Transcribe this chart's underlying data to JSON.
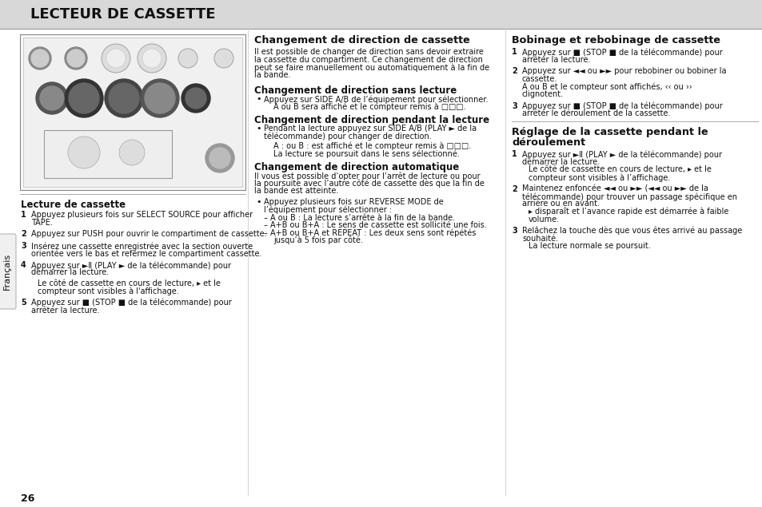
{
  "title": "LECTEUR DE CASSETTE",
  "page_number": "26",
  "bg_color": "#ffffff",
  "header_bg": "#d8d8d8",
  "col1_title": "Lecture de cassette",
  "col2_title": "Changement de direction de cassette",
  "col3_title1": "Bobinage et rebobinage de cassette",
  "col3_title2": "Réglage de la cassette pendant le déroulement",
  "sidebar_text": "Français",
  "figsize": [
    9.54,
    6.35
  ],
  "dpi": 100
}
